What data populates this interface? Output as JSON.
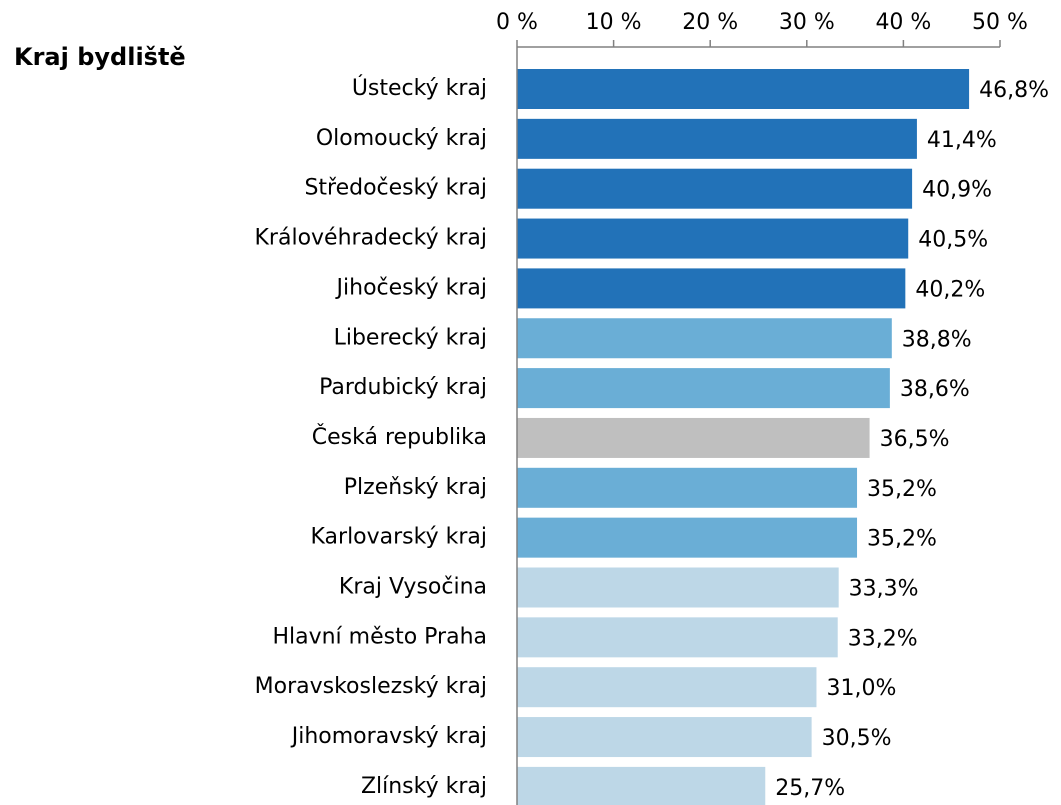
{
  "chart_data": {
    "type": "barh",
    "title": "Kraj bydliště",
    "categories": [
      "Ústecký kraj",
      "Olomoucký kraj",
      "Středočeský kraj",
      "Královéhradecký kraj",
      "Jihočeský kraj",
      "Liberecký kraj",
      "Pardubický kraj",
      "Česká republika",
      "Plzeňský kraj",
      "Karlovarský kraj",
      "Kraj Vysočina",
      "Hlavní město Praha",
      "Moravskoslezský kraj",
      "Jihomoravský kraj",
      "Zlínský kraj"
    ],
    "values": [
      46.8,
      41.4,
      40.9,
      40.5,
      40.2,
      38.8,
      38.6,
      36.5,
      35.2,
      35.2,
      33.3,
      33.2,
      31.0,
      30.5,
      25.7
    ],
    "value_labels": [
      "46,8%",
      "41,4%",
      "40,9%",
      "40,5%",
      "40,2%",
      "38,8%",
      "38,6%",
      "36,5%",
      "35,2%",
      "35,2%",
      "33,3%",
      "33,2%",
      "31,0%",
      "30,5%",
      "25,7%"
    ],
    "colors": [
      "#2272b8",
      "#2272b8",
      "#2272b8",
      "#2272b8",
      "#2272b8",
      "#6aaed6",
      "#6aaed6",
      "#bfbfbf",
      "#6aaed6",
      "#6aaed6",
      "#bdd7e7",
      "#bdd7e7",
      "#bdd7e7",
      "#bdd7e7",
      "#bdd7e7"
    ],
    "xlim": [
      0,
      50
    ],
    "xticks": [
      {
        "value": 0,
        "label": "0 %"
      },
      {
        "value": 10,
        "label": "10 %"
      },
      {
        "value": 20,
        "label": "20 %"
      },
      {
        "value": 30,
        "label": "30 %"
      },
      {
        "value": 40,
        "label": "40 %"
      },
      {
        "value": 50,
        "label": "50 %"
      }
    ]
  }
}
